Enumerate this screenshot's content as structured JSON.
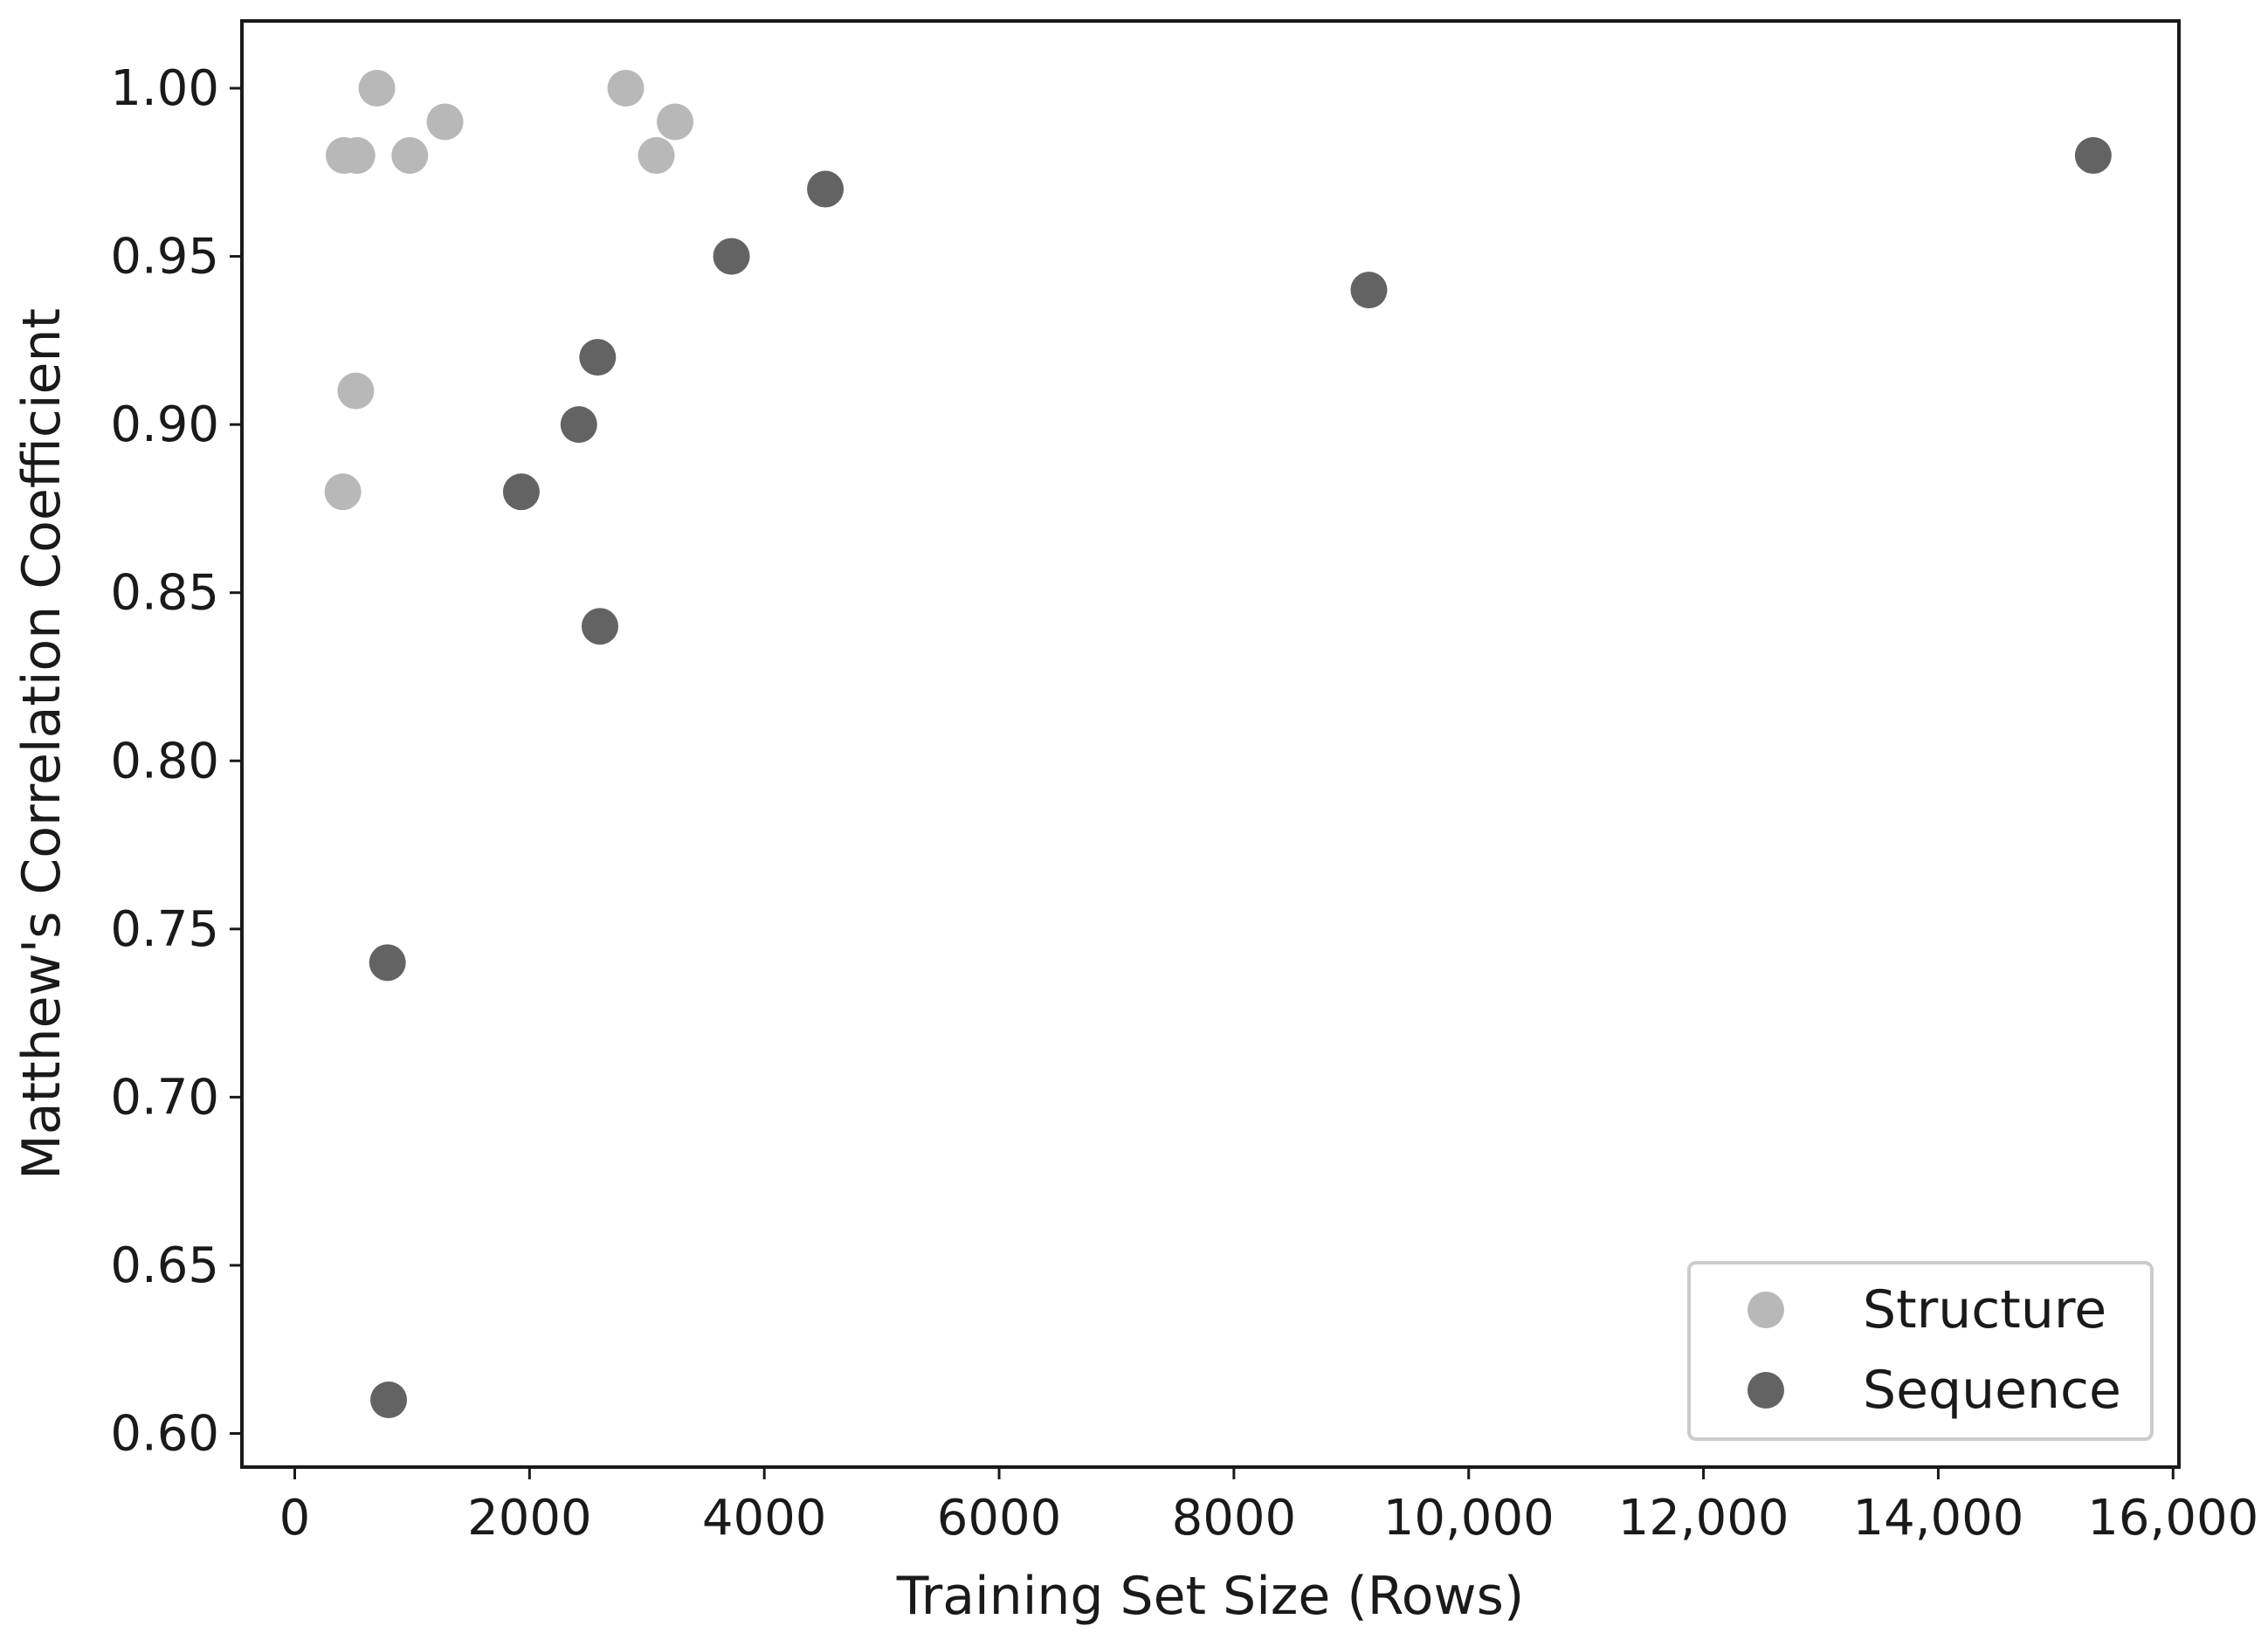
{
  "chart_data": {
    "type": "scatter",
    "title": "",
    "xlabel": "Training Set Size (Rows)",
    "ylabel": "Matthew's Correlation Coefficient",
    "xlim": [
      -450,
      16050
    ],
    "ylim": [
      0.59,
      1.02
    ],
    "x_ticks": [
      0,
      2000,
      4000,
      6000,
      8000,
      10000,
      12000,
      14000,
      16000
    ],
    "x_tick_labels": [
      "0",
      "2000",
      "4000",
      "6000",
      "8000",
      "10,000",
      "12,000",
      "14,000",
      "16,000"
    ],
    "y_ticks": [
      0.6,
      0.65,
      0.7,
      0.75,
      0.8,
      0.85,
      0.9,
      0.95,
      1.0
    ],
    "y_tick_labels": [
      "0.60",
      "0.65",
      "0.70",
      "0.75",
      "0.80",
      "0.85",
      "0.90",
      "0.95",
      "1.00"
    ],
    "grid": false,
    "legend_position": "lower-right",
    "series": [
      {
        "name": "Structure",
        "color": "#b8b8b8",
        "points": [
          {
            "x": 420,
            "y": 0.98
          },
          {
            "x": 530,
            "y": 0.98
          },
          {
            "x": 700,
            "y": 1.0
          },
          {
            "x": 980,
            "y": 0.98
          },
          {
            "x": 1280,
            "y": 0.99
          },
          {
            "x": 2820,
            "y": 1.0
          },
          {
            "x": 3080,
            "y": 0.98
          },
          {
            "x": 3240,
            "y": 0.99
          },
          {
            "x": 520,
            "y": 0.91
          },
          {
            "x": 410,
            "y": 0.88
          }
        ]
      },
      {
        "name": "Sequence",
        "color": "#636363",
        "points": [
          {
            "x": 15320,
            "y": 0.98
          },
          {
            "x": 4520,
            "y": 0.97
          },
          {
            "x": 3720,
            "y": 0.95
          },
          {
            "x": 9150,
            "y": 0.94
          },
          {
            "x": 2580,
            "y": 0.92
          },
          {
            "x": 2420,
            "y": 0.9
          },
          {
            "x": 1930,
            "y": 0.88
          },
          {
            "x": 2600,
            "y": 0.84
          },
          {
            "x": 790,
            "y": 0.74
          },
          {
            "x": 800,
            "y": 0.61
          }
        ]
      }
    ]
  }
}
